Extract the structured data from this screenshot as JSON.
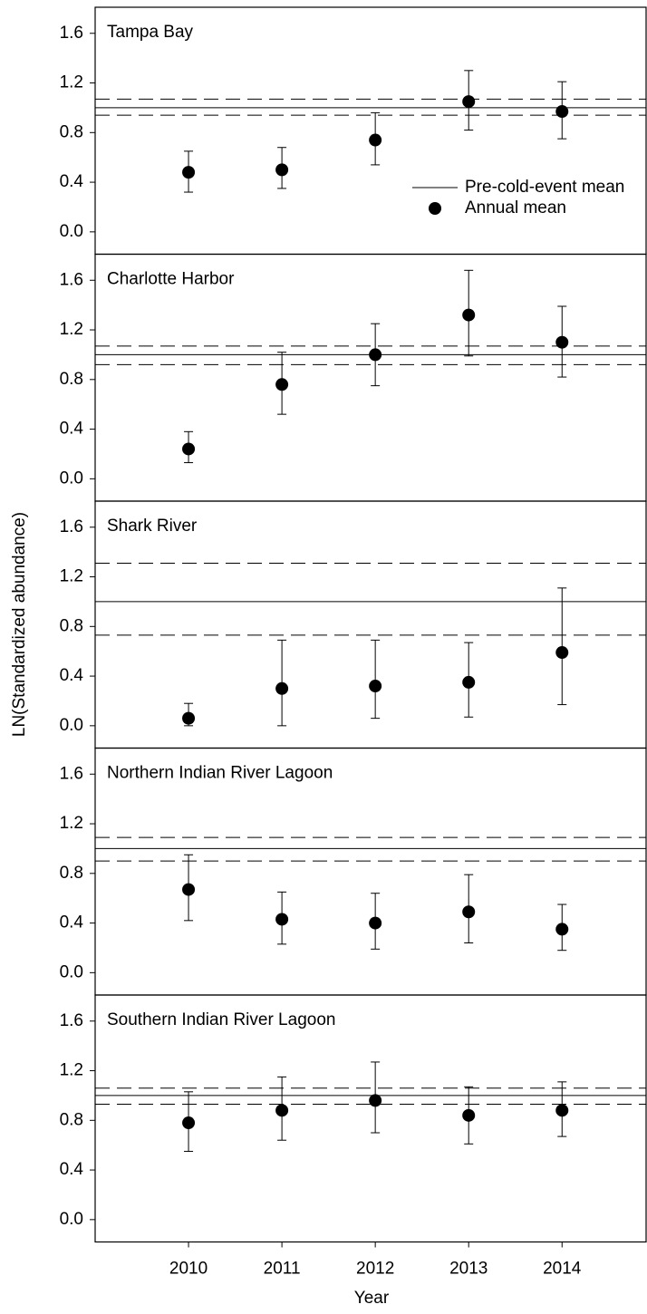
{
  "y_label": "LN(Standardized abundance)",
  "x_label": "Year",
  "chart_data": [
    {
      "type": "errorbar",
      "title": "Tampa Bay",
      "series_name": "Annual mean",
      "reference_name": "Pre-cold-event mean",
      "legend": "right",
      "x": [
        2010,
        2011,
        2012,
        2013,
        2014
      ],
      "values": [
        0.48,
        0.5,
        0.74,
        1.05,
        0.97
      ],
      "lower": [
        0.32,
        0.35,
        0.54,
        0.82,
        0.75
      ],
      "upper": [
        0.65,
        0.68,
        0.96,
        1.3,
        1.21
      ],
      "reference": {
        "mean": 1.0,
        "lower": 0.94,
        "upper": 1.07
      },
      "xlim": [
        2009,
        2014.9
      ],
      "ylim": [
        -0.18,
        1.81
      ],
      "yticks": [
        {
          "value": 0,
          "label": "0.0"
        },
        0.4,
        0.8,
        1.2,
        1.6
      ],
      "color": "#000000"
    },
    {
      "type": "errorbar",
      "title": "Charlotte Harbor",
      "x": [
        2010,
        2011,
        2012,
        2013,
        2014
      ],
      "values": [
        0.24,
        0.76,
        1.0,
        1.32,
        1.1
      ],
      "lower": [
        0.13,
        0.52,
        0.75,
        0.99,
        0.82
      ],
      "upper": [
        0.38,
        1.02,
        1.25,
        1.68,
        1.39
      ],
      "reference": {
        "mean": 1.0,
        "lower": 0.92,
        "upper": 1.07
      },
      "xlim": [
        2009,
        2014.9
      ],
      "ylim": [
        -0.18,
        1.81
      ],
      "yticks": [
        {
          "value": 0,
          "label": "0.0"
        },
        0.4,
        0.8,
        1.2,
        1.6
      ],
      "color": "#000000"
    },
    {
      "type": "errorbar",
      "title": "Shark River",
      "x": [
        2010,
        2011,
        2012,
        2013,
        2014
      ],
      "values": [
        0.06,
        0.3,
        0.32,
        0.35,
        0.59
      ],
      "lower": [
        0.0,
        0.0,
        0.06,
        0.07,
        0.17
      ],
      "upper": [
        0.18,
        0.69,
        0.69,
        0.67,
        1.11
      ],
      "reference": {
        "mean": 1.0,
        "lower": 0.73,
        "upper": 1.31
      },
      "xlim": [
        2009,
        2014.9
      ],
      "ylim": [
        -0.18,
        1.81
      ],
      "yticks": [
        {
          "value": 0,
          "label": "0.0"
        },
        0.4,
        0.8,
        1.2,
        1.6
      ],
      "color": "#000000"
    },
    {
      "type": "errorbar",
      "title": "Northern Indian River Lagoon",
      "x": [
        2010,
        2011,
        2012,
        2013,
        2014
      ],
      "values": [
        0.67,
        0.43,
        0.4,
        0.49,
        0.35
      ],
      "lower": [
        0.42,
        0.23,
        0.19,
        0.24,
        0.18
      ],
      "upper": [
        0.95,
        0.65,
        0.64,
        0.79,
        0.55
      ],
      "reference": {
        "mean": 1.0,
        "lower": 0.9,
        "upper": 1.09
      },
      "xlim": [
        2009,
        2014.9
      ],
      "ylim": [
        -0.18,
        1.81
      ],
      "yticks": [
        {
          "value": 0,
          "label": "0.0"
        },
        0.4,
        0.8,
        1.2,
        1.6
      ],
      "color": "#000000"
    },
    {
      "type": "errorbar",
      "title": "Southern Indian River Lagoon",
      "x": [
        2010,
        2011,
        2012,
        2013,
        2014
      ],
      "values": [
        0.78,
        0.88,
        0.96,
        0.84,
        0.88
      ],
      "lower": [
        0.55,
        0.64,
        0.7,
        0.61,
        0.67
      ],
      "upper": [
        1.03,
        1.15,
        1.27,
        1.07,
        1.11
      ],
      "reference": {
        "mean": 1.0,
        "lower": 0.93,
        "upper": 1.06
      },
      "xlim": [
        2009,
        2014.9
      ],
      "ylim": [
        -0.18,
        1.81
      ],
      "yticks": [
        {
          "value": 0,
          "label": "0.0"
        },
        0.4,
        0.8,
        1.2,
        1.6
      ],
      "xticks": [
        2010,
        2011,
        2012,
        2013,
        2014
      ],
      "color": "#000000"
    }
  ]
}
